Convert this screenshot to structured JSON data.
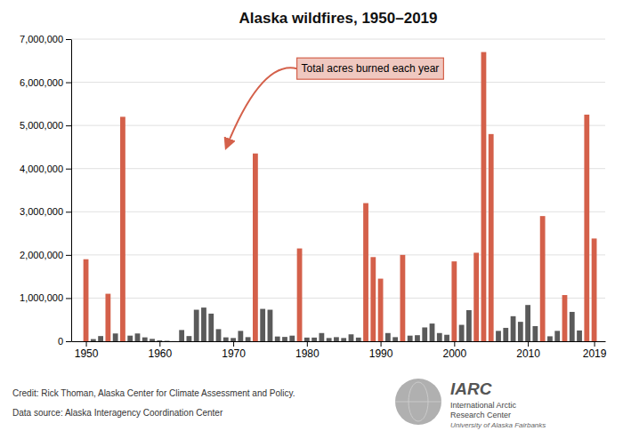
{
  "chart_data": {
    "type": "bar",
    "title": "Alaska wildfires, 1950–2019",
    "x": [
      1950,
      1951,
      1952,
      1953,
      1954,
      1955,
      1956,
      1957,
      1958,
      1959,
      1960,
      1961,
      1962,
      1963,
      1964,
      1965,
      1966,
      1967,
      1968,
      1969,
      1970,
      1971,
      1972,
      1973,
      1974,
      1975,
      1976,
      1977,
      1978,
      1979,
      1980,
      1981,
      1982,
      1983,
      1984,
      1985,
      1986,
      1987,
      1988,
      1989,
      1990,
      1991,
      1992,
      1993,
      1994,
      1995,
      1996,
      1997,
      1998,
      1999,
      2000,
      2001,
      2002,
      2003,
      2004,
      2005,
      2006,
      2007,
      2008,
      2009,
      2010,
      2011,
      2012,
      2013,
      2014,
      2015,
      2016,
      2017,
      2018,
      2019
    ],
    "values": [
      1900000,
      50000,
      120000,
      1100000,
      180000,
      5200000,
      130000,
      180000,
      90000,
      55000,
      20000,
      10000,
      1500,
      260000,
      120000,
      730000,
      780000,
      640000,
      280000,
      90000,
      75000,
      240000,
      95000,
      4350000,
      750000,
      730000,
      110000,
      100000,
      130000,
      2150000,
      85000,
      85000,
      190000,
      75000,
      95000,
      75000,
      160000,
      85000,
      3200000,
      1950000,
      1450000,
      190000,
      95000,
      2000000,
      130000,
      140000,
      320000,
      410000,
      190000,
      150000,
      1850000,
      380000,
      720000,
      2050000,
      6700000,
      4800000,
      240000,
      310000,
      580000,
      450000,
      840000,
      350000,
      2900000,
      115000,
      240000,
      1070000,
      680000,
      250000,
      5250000,
      2380000
    ],
    "colors": [
      "#d4604a",
      "#5a5a5a",
      "#5a5a5a",
      "#d4604a",
      "#5a5a5a",
      "#d4604a",
      "#5a5a5a",
      "#5a5a5a",
      "#5a5a5a",
      "#5a5a5a",
      "#5a5a5a",
      "#5a5a5a",
      "#5a5a5a",
      "#5a5a5a",
      "#5a5a5a",
      "#5a5a5a",
      "#5a5a5a",
      "#5a5a5a",
      "#5a5a5a",
      "#5a5a5a",
      "#5a5a5a",
      "#5a5a5a",
      "#5a5a5a",
      "#d4604a",
      "#5a5a5a",
      "#5a5a5a",
      "#5a5a5a",
      "#5a5a5a",
      "#5a5a5a",
      "#d4604a",
      "#5a5a5a",
      "#5a5a5a",
      "#5a5a5a",
      "#5a5a5a",
      "#5a5a5a",
      "#5a5a5a",
      "#5a5a5a",
      "#5a5a5a",
      "#d4604a",
      "#d4604a",
      "#d4604a",
      "#5a5a5a",
      "#5a5a5a",
      "#d4604a",
      "#5a5a5a",
      "#5a5a5a",
      "#5a5a5a",
      "#5a5a5a",
      "#5a5a5a",
      "#5a5a5a",
      "#d4604a",
      "#5a5a5a",
      "#5a5a5a",
      "#d4604a",
      "#d4604a",
      "#d4604a",
      "#5a5a5a",
      "#5a5a5a",
      "#5a5a5a",
      "#5a5a5a",
      "#5a5a5a",
      "#5a5a5a",
      "#d4604a",
      "#5a5a5a",
      "#5a5a5a",
      "#d4604a",
      "#5a5a5a",
      "#5a5a5a",
      "#d4604a",
      "#d4604a"
    ],
    "xlim": [
      1948,
      2020.5
    ],
    "xticks": [
      1950,
      1960,
      1970,
      1980,
      1990,
      2000,
      2010,
      2019
    ],
    "ylim": [
      0,
      7000000
    ],
    "yticks": [
      0,
      {
        "value": 1000000,
        "label": "1,000,000"
      },
      {
        "value": 2000000,
        "label": "2,000,000"
      },
      {
        "value": 3000000,
        "label": "3,000,000"
      },
      {
        "value": 4000000,
        "label": "4,000,000"
      },
      {
        "value": 5000000,
        "label": "5,000,000"
      },
      {
        "value": 6000000,
        "label": "6,000,000"
      },
      {
        "value": 7000000,
        "label": "7,000,000"
      }
    ],
    "grid": true,
    "annotation": {
      "text": "Total acres burned each year",
      "color": "#d4604a"
    },
    "notes": [
      "Credit: Rick Thoman, Alaska Center for Climate Assessment and Policy.",
      "Data source: Alaska Interagency Coordination Center"
    ],
    "logo": [
      "IARC",
      "International Arctic",
      "Research Center",
      "University of Alaska Fairbanks"
    ]
  }
}
